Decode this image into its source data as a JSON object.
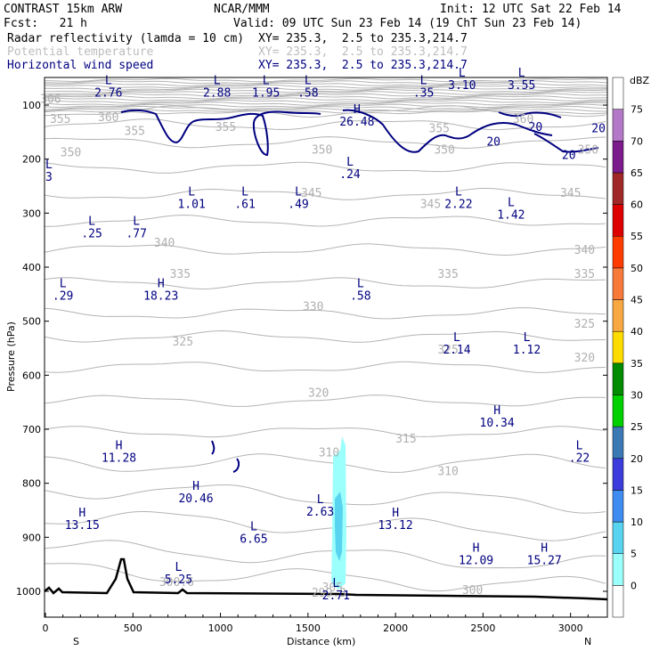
{
  "header": {
    "model": "CONTRAST 15km ARW",
    "org": "NCAR/MMM",
    "init": "Init: 12 UTC Sat 22 Feb 14",
    "fcst": "Fcst:   21 h",
    "valid": "Valid: 09 UTC Sun 23 Feb 14 (19 ChT Sun 23 Feb 14)"
  },
  "legend": [
    {
      "name": "Radar reflectivity (lamda = 10 cm)",
      "xy": "XY= 235.3,  2.5 to 235.3,214.7",
      "color": "#000000"
    },
    {
      "name": "Potential temperature",
      "xy": "XY= 235.3,  2.5 to 235.3,214.7",
      "color": "#bdbdbd"
    },
    {
      "name": "Horizontal wind speed",
      "xy": "XY= 235.3,  2.5 to 235.3,214.7",
      "color": "#000080"
    }
  ],
  "chart_data": {
    "type": "cross-section",
    "xlabel": "Distance (km)",
    "ylabel": "Pressure (hPa)",
    "xlim": [
      0,
      3200
    ],
    "ylim": [
      1050,
      60
    ],
    "xticks": [
      0,
      500,
      1000,
      1500,
      2000,
      2500,
      3000
    ],
    "yticks": [
      100,
      200,
      300,
      400,
      500,
      600,
      700,
      800,
      900,
      1000
    ],
    "x_end_labels": {
      "left": "S",
      "right": "N"
    },
    "colorbar": {
      "unit": "dBZ",
      "levels": [
        0,
        5,
        10,
        15,
        20,
        25,
        30,
        35,
        40,
        45,
        50,
        55,
        60,
        65,
        70,
        75
      ],
      "colors": [
        "#ffffff",
        "#9bfffc",
        "#58d4f0",
        "#3e8cf0",
        "#3c3cdc",
        "#3c78b4",
        "#00d000",
        "#008c00",
        "#ffdc00",
        "#f8a842",
        "#f87a3a",
        "#ff3b00",
        "#dc0000",
        "#a02828",
        "#7c1c8c",
        "#b478c8",
        "#ffffff"
      ]
    },
    "theta_labels": [
      {
        "x": 30,
        "p": 96,
        "text": "306"
      },
      {
        "x": 360,
        "p": 130,
        "text": "360"
      },
      {
        "x": 85,
        "p": 133,
        "text": "355"
      },
      {
        "x": 510,
        "p": 155,
        "text": "355"
      },
      {
        "x": 1030,
        "p": 148,
        "text": "355"
      },
      {
        "x": 2730,
        "p": 133,
        "text": "360"
      },
      {
        "x": 2250,
        "p": 150,
        "text": "355"
      },
      {
        "x": 3100,
        "p": 190,
        "text": "350"
      },
      {
        "x": 145,
        "p": 195,
        "text": "350"
      },
      {
        "x": 1580,
        "p": 190,
        "text": "350"
      },
      {
        "x": 2280,
        "p": 190,
        "text": "350"
      },
      {
        "x": 1520,
        "p": 270,
        "text": "345"
      },
      {
        "x": 3000,
        "p": 270,
        "text": "345"
      },
      {
        "x": 2200,
        "p": 290,
        "text": "345"
      },
      {
        "x": 680,
        "p": 362,
        "text": "340"
      },
      {
        "x": 3080,
        "p": 375,
        "text": "340"
      },
      {
        "x": 770,
        "p": 420,
        "text": "335"
      },
      {
        "x": 2300,
        "p": 420,
        "text": "335"
      },
      {
        "x": 3080,
        "p": 420,
        "text": "335"
      },
      {
        "x": 1530,
        "p": 480,
        "text": "330"
      },
      {
        "x": 3080,
        "p": 512,
        "text": "325"
      },
      {
        "x": 785,
        "p": 545,
        "text": "325"
      },
      {
        "x": 2300,
        "p": 560,
        "text": "325"
      },
      {
        "x": 3080,
        "p": 575,
        "text": "320"
      },
      {
        "x": 1560,
        "p": 640,
        "text": "320"
      },
      {
        "x": 2060,
        "p": 725,
        "text": "315"
      },
      {
        "x": 1620,
        "p": 750,
        "text": "310"
      },
      {
        "x": 2300,
        "p": 785,
        "text": "310"
      },
      {
        "x": 750,
        "p": 990,
        "text": "300.6"
      },
      {
        "x": 1620,
        "p": 1010,
        "text": "299.3"
      },
      {
        "x": 2440,
        "p": 1005,
        "text": "300"
      },
      {
        "x": 1640,
        "p": 1000,
        "text": "305"
      }
    ],
    "wind_labels": [
      {
        "x": 2800,
        "p": 148,
        "text": "20"
      },
      {
        "x": 2560,
        "p": 175,
        "text": "20"
      },
      {
        "x": 2990,
        "p": 200,
        "text": "20"
      },
      {
        "x": 3160,
        "p": 150,
        "text": "20"
      }
    ],
    "extrema": [
      {
        "x": 360,
        "p": 84,
        "type": "L",
        "value": "2.76"
      },
      {
        "x": 980,
        "p": 84,
        "type": "L",
        "value": "2.88"
      },
      {
        "x": 1260,
        "p": 84,
        "type": "L",
        "value": "1.95"
      },
      {
        "x": 1500,
        "p": 84,
        "type": "L",
        "value": ".58"
      },
      {
        "x": 2160,
        "p": 84,
        "type": "L",
        "value": ".35"
      },
      {
        "x": 2380,
        "p": 70,
        "type": "L",
        "value": "3.10"
      },
      {
        "x": 2720,
        "p": 70,
        "type": "L",
        "value": "3.55"
      },
      {
        "x": 1780,
        "p": 138,
        "type": "H",
        "value": "26.48"
      },
      {
        "x": 1740,
        "p": 235,
        "type": "L",
        "value": ".24"
      },
      {
        "x": 835,
        "p": 290,
        "type": "L",
        "value": "1.01"
      },
      {
        "x": 1140,
        "p": 290,
        "type": "L",
        "value": ".61"
      },
      {
        "x": 1445,
        "p": 290,
        "type": "L",
        "value": ".49"
      },
      {
        "x": 2360,
        "p": 290,
        "type": "L",
        "value": "2.22"
      },
      {
        "x": 2660,
        "p": 310,
        "type": "L",
        "value": "1.42"
      },
      {
        "x": 265,
        "p": 345,
        "type": "L",
        "value": ".25"
      },
      {
        "x": 520,
        "p": 345,
        "type": "L",
        "value": ".77"
      },
      {
        "x": 100,
        "p": 460,
        "type": "L",
        "value": ".29"
      },
      {
        "x": 660,
        "p": 460,
        "type": "H",
        "value": "18.23"
      },
      {
        "x": 1800,
        "p": 460,
        "type": "L",
        "value": ".58"
      },
      {
        "x": 2350,
        "p": 560,
        "type": "L",
        "value": "2.14"
      },
      {
        "x": 2750,
        "p": 560,
        "type": "L",
        "value": "1.12"
      },
      {
        "x": 2580,
        "p": 695,
        "type": "H",
        "value": "10.34"
      },
      {
        "x": 3050,
        "p": 760,
        "type": "L",
        "value": ".22"
      },
      {
        "x": 420,
        "p": 760,
        "type": "H",
        "value": "11.28"
      },
      {
        "x": 860,
        "p": 835,
        "type": "H",
        "value": "20.46"
      },
      {
        "x": 1570,
        "p": 860,
        "type": "L",
        "value": "2.63"
      },
      {
        "x": 210,
        "p": 885,
        "type": "H",
        "value": "13.15"
      },
      {
        "x": 2000,
        "p": 885,
        "type": "H",
        "value": "13.12"
      },
      {
        "x": 1190,
        "p": 910,
        "type": "L",
        "value": "6.65"
      },
      {
        "x": 2460,
        "p": 950,
        "type": "H",
        "value": "12.09"
      },
      {
        "x": 2850,
        "p": 950,
        "type": "H",
        "value": "15.27"
      },
      {
        "x": 760,
        "p": 985,
        "type": "L",
        "value": "5.25"
      },
      {
        "x": 1660,
        "p": 1015,
        "type": "L",
        "value": "2.71"
      },
      {
        "x": 20,
        "p": 240,
        "type": "L",
        "value": "3"
      }
    ]
  }
}
